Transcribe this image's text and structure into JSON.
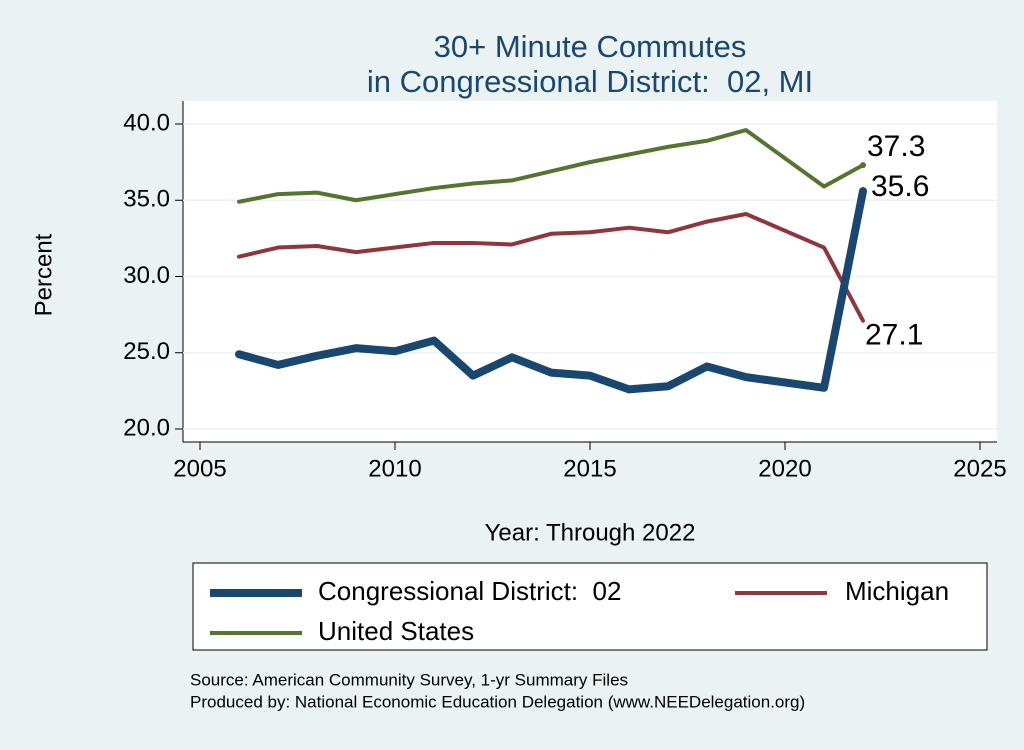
{
  "chart_data": {
    "type": "line",
    "title": [
      "30+ Minute Commutes",
      "in Congressional District:  02, MI"
    ],
    "x_label": "Year: Through 2022",
    "y_label": "Percent",
    "x": [
      2006,
      2007,
      2008,
      2009,
      2010,
      2011,
      2012,
      2013,
      2014,
      2015,
      2016,
      2017,
      2018,
      2019,
      2021,
      2022
    ],
    "series": [
      {
        "name": "Congressional District:  02",
        "color": "#1a476f",
        "values": [
          24.9,
          24.2,
          24.8,
          25.3,
          25.1,
          25.8,
          23.5,
          24.7,
          23.7,
          23.5,
          22.6,
          22.8,
          24.1,
          23.4,
          22.7,
          35.6
        ]
      },
      {
        "name": "Michigan",
        "color": "#90353b",
        "values": [
          31.3,
          31.9,
          32.0,
          31.6,
          31.9,
          32.2,
          32.2,
          32.1,
          32.8,
          32.9,
          33.2,
          32.9,
          33.6,
          34.1,
          31.9,
          27.1
        ]
      },
      {
        "name": "United States",
        "color": "#55752f",
        "values": [
          34.9,
          35.4,
          35.5,
          35.0,
          35.4,
          35.8,
          36.1,
          36.3,
          36.9,
          37.5,
          38.0,
          38.5,
          38.9,
          39.6,
          35.9,
          37.3
        ]
      }
    ],
    "xlim": [
      2005,
      2025
    ],
    "xticks": [
      2005,
      2010,
      2015,
      2020,
      2025
    ],
    "ylim": [
      20,
      40
    ],
    "yticks": [
      {
        "value": 20,
        "label": "20.0"
      },
      {
        "value": 25,
        "label": "25.0"
      },
      {
        "value": 30,
        "label": "30.0"
      },
      {
        "value": 35,
        "label": "35.0"
      },
      {
        "value": 40,
        "label": "40.0"
      }
    ],
    "grid": true,
    "notes": [
      "Source: American Community Survey, 1-yr Summary Files",
      "Produced by: National Economic Education Delegation (www.NEEDelegation.org)"
    ]
  }
}
